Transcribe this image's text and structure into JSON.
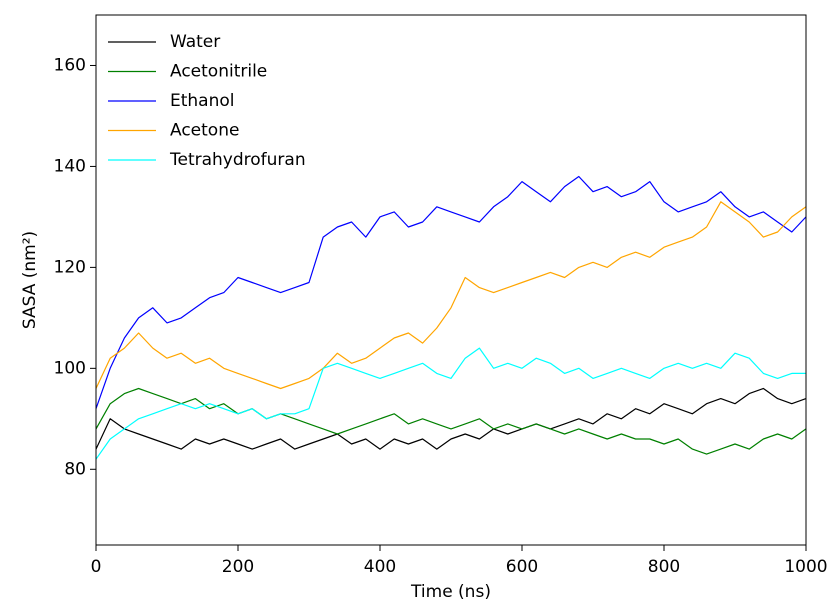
{
  "chart_data": {
    "type": "line",
    "xlabel": "Time (ns)",
    "ylabel": "SASA (nm²)",
    "xlim": [
      0,
      1000
    ],
    "xticks": [
      0,
      200,
      400,
      600,
      800,
      1000
    ],
    "ylim": [
      65,
      170
    ],
    "yticks": [
      80,
      100,
      120,
      140,
      160
    ],
    "legend": "upper left",
    "x": [
      0,
      20,
      40,
      60,
      80,
      100,
      120,
      140,
      160,
      180,
      200,
      220,
      240,
      260,
      280,
      300,
      320,
      340,
      360,
      380,
      400,
      420,
      440,
      460,
      480,
      500,
      520,
      540,
      560,
      580,
      600,
      620,
      640,
      660,
      680,
      700,
      720,
      740,
      760,
      780,
      800,
      820,
      840,
      860,
      880,
      900,
      920,
      940,
      960,
      980,
      1000
    ],
    "series": [
      {
        "name": "Water",
        "color": "#000000",
        "values": [
          84,
          90,
          88,
          87,
          86,
          85,
          84,
          86,
          85,
          86,
          85,
          84,
          85,
          86,
          84,
          85,
          86,
          87,
          85,
          86,
          84,
          86,
          85,
          86,
          84,
          86,
          87,
          86,
          88,
          87,
          88,
          89,
          88,
          89,
          90,
          89,
          91,
          90,
          92,
          91,
          93,
          92,
          91,
          93,
          94,
          93,
          95,
          96,
          94,
          93,
          94
        ]
      },
      {
        "name": "Acetonitrile",
        "color": "#008000",
        "values": [
          88,
          93,
          95,
          96,
          95,
          94,
          93,
          94,
          92,
          93,
          91,
          92,
          90,
          91,
          90,
          89,
          88,
          87,
          88,
          89,
          90,
          91,
          89,
          90,
          89,
          88,
          89,
          90,
          88,
          89,
          88,
          89,
          88,
          87,
          88,
          87,
          86,
          87,
          86,
          86,
          85,
          86,
          84,
          83,
          84,
          85,
          84,
          86,
          87,
          86,
          88
        ]
      },
      {
        "name": "Ethanol",
        "color": "#0000ff",
        "values": [
          92,
          100,
          106,
          110,
          112,
          109,
          110,
          112,
          114,
          115,
          118,
          117,
          116,
          115,
          116,
          117,
          126,
          128,
          129,
          126,
          130,
          131,
          128,
          129,
          132,
          131,
          130,
          129,
          132,
          134,
          137,
          135,
          133,
          136,
          138,
          135,
          136,
          134,
          135,
          137,
          133,
          131,
          132,
          133,
          135,
          132,
          130,
          131,
          129,
          127,
          130
        ]
      },
      {
        "name": "Acetone",
        "color": "#ffa500",
        "values": [
          96,
          102,
          104,
          107,
          104,
          102,
          103,
          101,
          102,
          100,
          99,
          98,
          97,
          96,
          97,
          98,
          100,
          103,
          101,
          102,
          104,
          106,
          107,
          105,
          108,
          112,
          118,
          116,
          115,
          116,
          117,
          118,
          119,
          118,
          120,
          121,
          120,
          122,
          123,
          122,
          124,
          125,
          126,
          128,
          133,
          131,
          129,
          126,
          127,
          130,
          132
        ]
      },
      {
        "name": "Tetrahydrofuran",
        "color": "#00ffff",
        "values": [
          82,
          86,
          88,
          90,
          91,
          92,
          93,
          92,
          93,
          92,
          91,
          92,
          90,
          91,
          91,
          92,
          100,
          101,
          100,
          99,
          98,
          99,
          100,
          101,
          99,
          98,
          102,
          104,
          100,
          101,
          100,
          102,
          101,
          99,
          100,
          98,
          99,
          100,
          99,
          98,
          100,
          101,
          100,
          101,
          100,
          103,
          102,
          99,
          98,
          99,
          99
        ]
      }
    ]
  }
}
